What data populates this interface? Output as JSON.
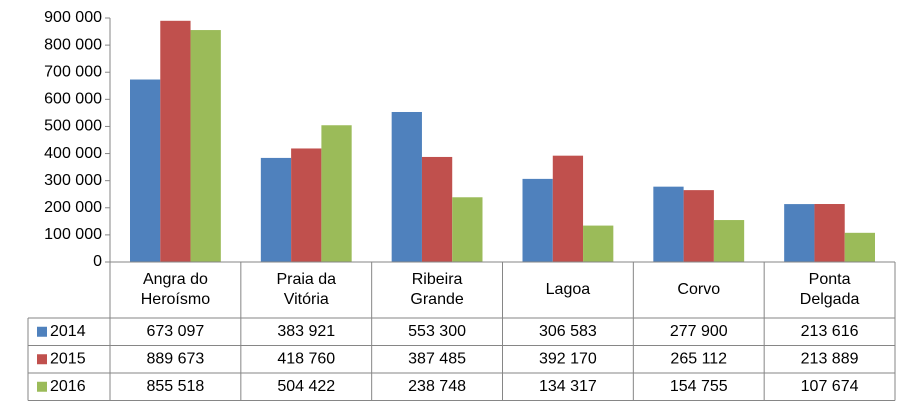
{
  "chart_data": {
    "type": "bar",
    "categories": [
      [
        "Angra do",
        "Heroísmo"
      ],
      [
        "Praia da",
        "Vitória"
      ],
      [
        "Ribeira",
        "Grande"
      ],
      [
        "Lagoa"
      ],
      [
        "Corvo"
      ],
      [
        "Ponta",
        "Delgada"
      ]
    ],
    "series": [
      {
        "name": "2014",
        "color": "#4f81bd",
        "values": [
          673097,
          383921,
          553300,
          306583,
          277900,
          213616
        ],
        "value_labels": [
          "673 097",
          "383 921",
          "553 300",
          "306 583",
          "277 900",
          "213 616"
        ]
      },
      {
        "name": "2015",
        "color": "#c0504d",
        "values": [
          889673,
          418760,
          387485,
          392170,
          265112,
          213889
        ],
        "value_labels": [
          "889 673",
          "418 760",
          "387 485",
          "392 170",
          "265 112",
          "213 889"
        ]
      },
      {
        "name": "2016",
        "color": "#9bbb59",
        "values": [
          855518,
          504422,
          238748,
          134317,
          154755,
          107674
        ],
        "value_labels": [
          "855 518",
          "504 422",
          "238 748",
          "134 317",
          "154 755",
          "107 674"
        ]
      }
    ],
    "ylim": [
      0,
      900000
    ],
    "yticks": [
      0,
      {
        "value": 100000,
        "label": "100 000"
      },
      {
        "value": 200000,
        "label": "200 000"
      },
      {
        "value": 300000,
        "label": "300 000"
      },
      {
        "value": 400000,
        "label": "400 000"
      },
      {
        "value": 500000,
        "label": "500 000"
      },
      {
        "value": 600000,
        "label": "600 000"
      },
      {
        "value": 700000,
        "label": "700 000"
      },
      {
        "value": 800000,
        "label": "800 000"
      },
      {
        "value": 900000,
        "label": "900 000"
      }
    ],
    "grid": false
  }
}
